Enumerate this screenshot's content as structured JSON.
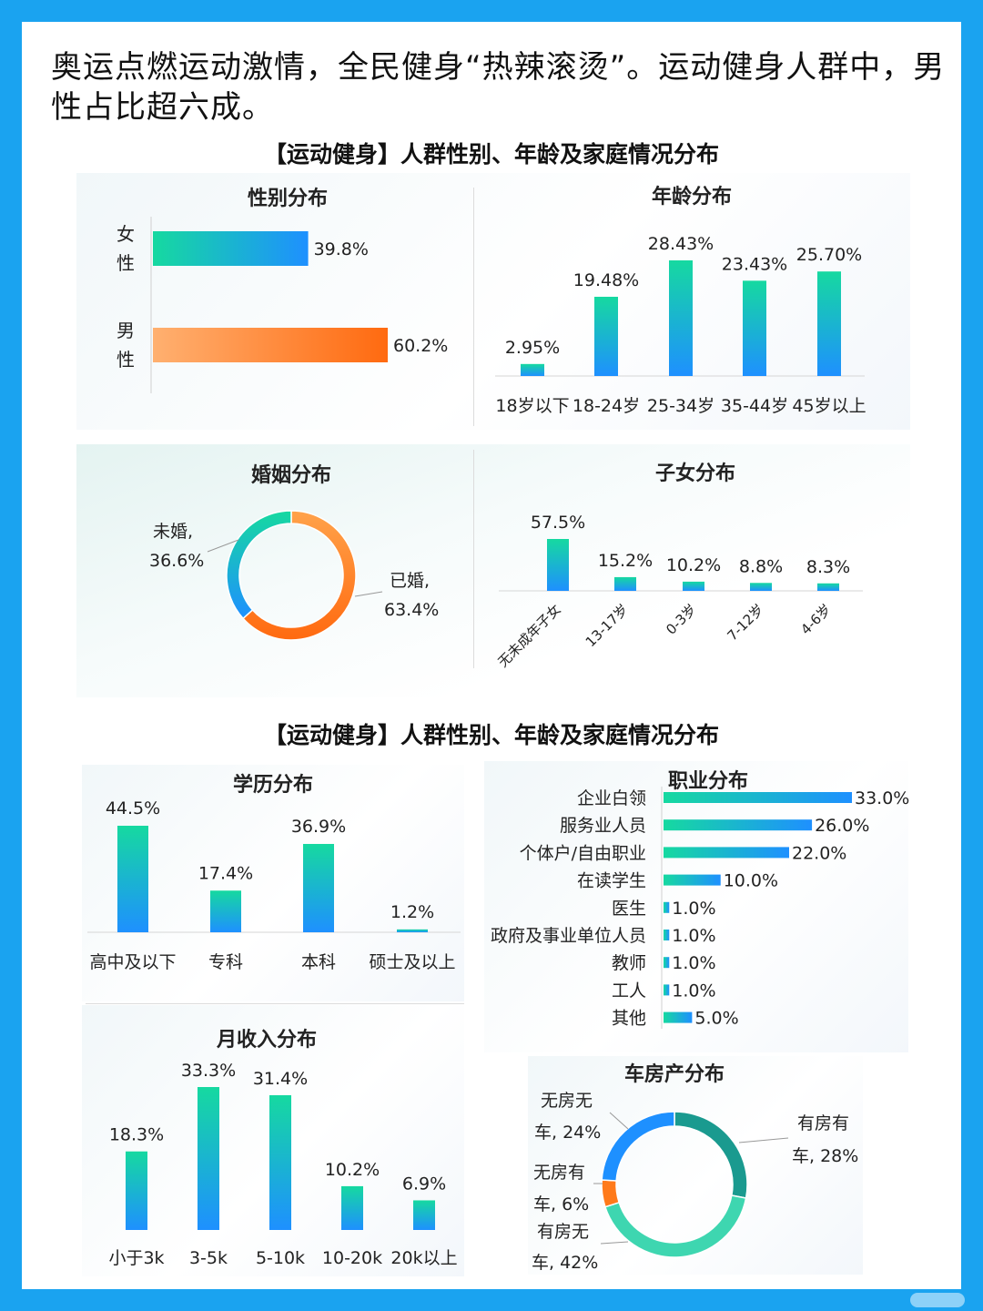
{
  "headline": "奥运点燃运动激情，全民健身“热辣滚烫”。运动健身人群中，男性占比超六成。",
  "section_titles": [
    "【运动健身】人群性别、年龄及家庭情况分布",
    "【运动健身】人群性别、年龄及家庭情况分布"
  ],
  "colors": {
    "border": "#1aa3f0",
    "teal": "#16d9a0",
    "blue": "#1e90ff",
    "orange": "#ff7a1a",
    "orange_light": "#ffb070"
  },
  "chart_data": [
    {
      "id": "gender",
      "type": "bar",
      "orientation": "horizontal",
      "title": "性别分布",
      "categories": [
        "女性",
        "男性"
      ],
      "category_chars": [
        [
          "女",
          "性"
        ],
        [
          "男",
          "性"
        ]
      ],
      "values": [
        39.8,
        60.2
      ],
      "labels": [
        "39.8%",
        "60.2%"
      ]
    },
    {
      "id": "age",
      "type": "bar",
      "title": "年龄分布",
      "categories": [
        "18岁以下",
        "18-24岁",
        "25-34岁",
        "35-44岁",
        "45岁以上"
      ],
      "values": [
        2.95,
        19.48,
        28.43,
        23.43,
        25.7
      ],
      "labels": [
        "2.95%",
        "19.48%",
        "28.43%",
        "23.43%",
        "25.70%"
      ]
    },
    {
      "id": "marriage",
      "type": "pie",
      "donut": true,
      "title": "婚姻分布",
      "categories": [
        "已婚",
        "未婚"
      ],
      "values": [
        63.4,
        36.6
      ],
      "label_lines": [
        [
          "已婚,",
          "63.4%"
        ],
        [
          "未婚,",
          "36.6%"
        ]
      ]
    },
    {
      "id": "children",
      "type": "bar",
      "title": "子女分布",
      "categories": [
        "无未成年子女",
        "13-17岁",
        "0-3岁",
        "7-12岁",
        "4-6岁"
      ],
      "values": [
        57.5,
        15.2,
        10.2,
        8.8,
        8.3
      ],
      "labels": [
        "57.5%",
        "15.2%",
        "10.2%",
        "8.8%",
        "8.3%"
      ]
    },
    {
      "id": "education",
      "type": "bar",
      "title": "学历分布",
      "categories": [
        "高中及以下",
        "专科",
        "本科",
        "硕士及以上"
      ],
      "values": [
        44.5,
        17.4,
        36.9,
        1.2
      ],
      "labels": [
        "44.5%",
        "17.4%",
        "36.9%",
        "1.2%"
      ]
    },
    {
      "id": "occupation",
      "type": "bar",
      "orientation": "horizontal",
      "title": "职业分布",
      "categories": [
        "企业白领",
        "服务业人员",
        "个体户/自由职业",
        "在读学生",
        "医生",
        "政府及事业单位人员",
        "教师",
        "工人",
        "其他"
      ],
      "values": [
        33.0,
        26.0,
        22.0,
        10.0,
        1.0,
        1.0,
        1.0,
        1.0,
        5.0
      ],
      "labels": [
        "33.0%",
        "26.0%",
        "22.0%",
        "10.0%",
        "1.0%",
        "1.0%",
        "1.0%",
        "1.0%",
        "5.0%"
      ]
    },
    {
      "id": "income",
      "type": "bar",
      "title": "月收入分布",
      "categories": [
        "小于3k",
        "3-5k",
        "5-10k",
        "10-20k",
        "20k以上"
      ],
      "values": [
        18.3,
        33.3,
        31.4,
        10.2,
        6.9
      ],
      "labels": [
        "18.3%",
        "33.3%",
        "31.4%",
        "10.2%",
        "6.9%"
      ]
    },
    {
      "id": "property",
      "type": "pie",
      "donut": true,
      "title": "车房产分布",
      "categories": [
        "有房有车",
        "有房无车",
        "无房有车",
        "无房无车"
      ],
      "values": [
        28,
        42,
        6,
        24
      ],
      "colors": [
        "#1a9a8f",
        "#3ed6b0",
        "#ff7a1a",
        "#1e90ff"
      ],
      "label_lines": [
        [
          "有房有",
          "车, 28%"
        ],
        [
          "有房无",
          "车, 42%"
        ],
        [
          "无房有",
          "车, 6%"
        ],
        [
          "无房无",
          "车, 24%"
        ]
      ]
    }
  ]
}
